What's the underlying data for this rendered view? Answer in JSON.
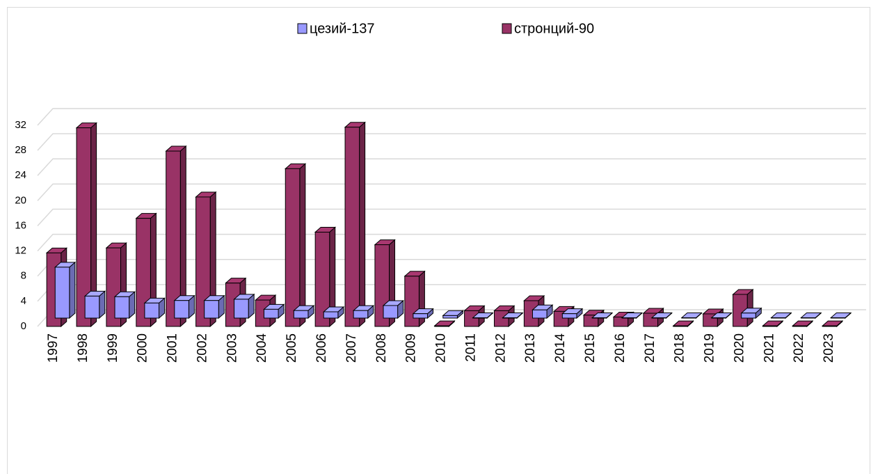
{
  "chart_data": {
    "type": "bar3d",
    "categories": [
      "1997",
      "1998",
      "1999",
      "2000",
      "2001",
      "2002",
      "2003",
      "2004",
      "2005",
      "2006",
      "2007",
      "2008",
      "2009",
      "2010",
      "2011",
      "2012",
      "2013",
      "2014",
      "2015",
      "2016",
      "2017",
      "2018",
      "2019",
      "2020",
      "2021",
      "2022",
      "2023"
    ],
    "series": [
      {
        "name": "цезий-137",
        "color": "#9999ff",
        "values": [
          8.1,
          3.5,
          3.4,
          2.4,
          2.8,
          2.8,
          3.0,
          1.4,
          1.2,
          1.0,
          1.2,
          2.0,
          0.7,
          0.4,
          0.05,
          0.05,
          1.3,
          0.7,
          0.05,
          0.05,
          0.05,
          0.05,
          0.05,
          0.8,
          0.05,
          0.05,
          0.05
        ]
      },
      {
        "name": "стронций-90",
        "color": "#993366",
        "values": [
          11.7,
          31.6,
          12.5,
          17.2,
          27.9,
          20.6,
          6.9,
          4.2,
          25.1,
          15.0,
          31.7,
          13.0,
          8.0,
          0.1,
          2.5,
          2.5,
          4.1,
          2.4,
          1.8,
          1.5,
          2.1,
          0.1,
          2.0,
          5.1,
          0.1,
          0.1,
          0.1
        ]
      }
    ],
    "ylim": [
      0,
      32
    ],
    "yticks": [
      0,
      4,
      8,
      12,
      16,
      20,
      24,
      28,
      32
    ],
    "grid": true
  }
}
